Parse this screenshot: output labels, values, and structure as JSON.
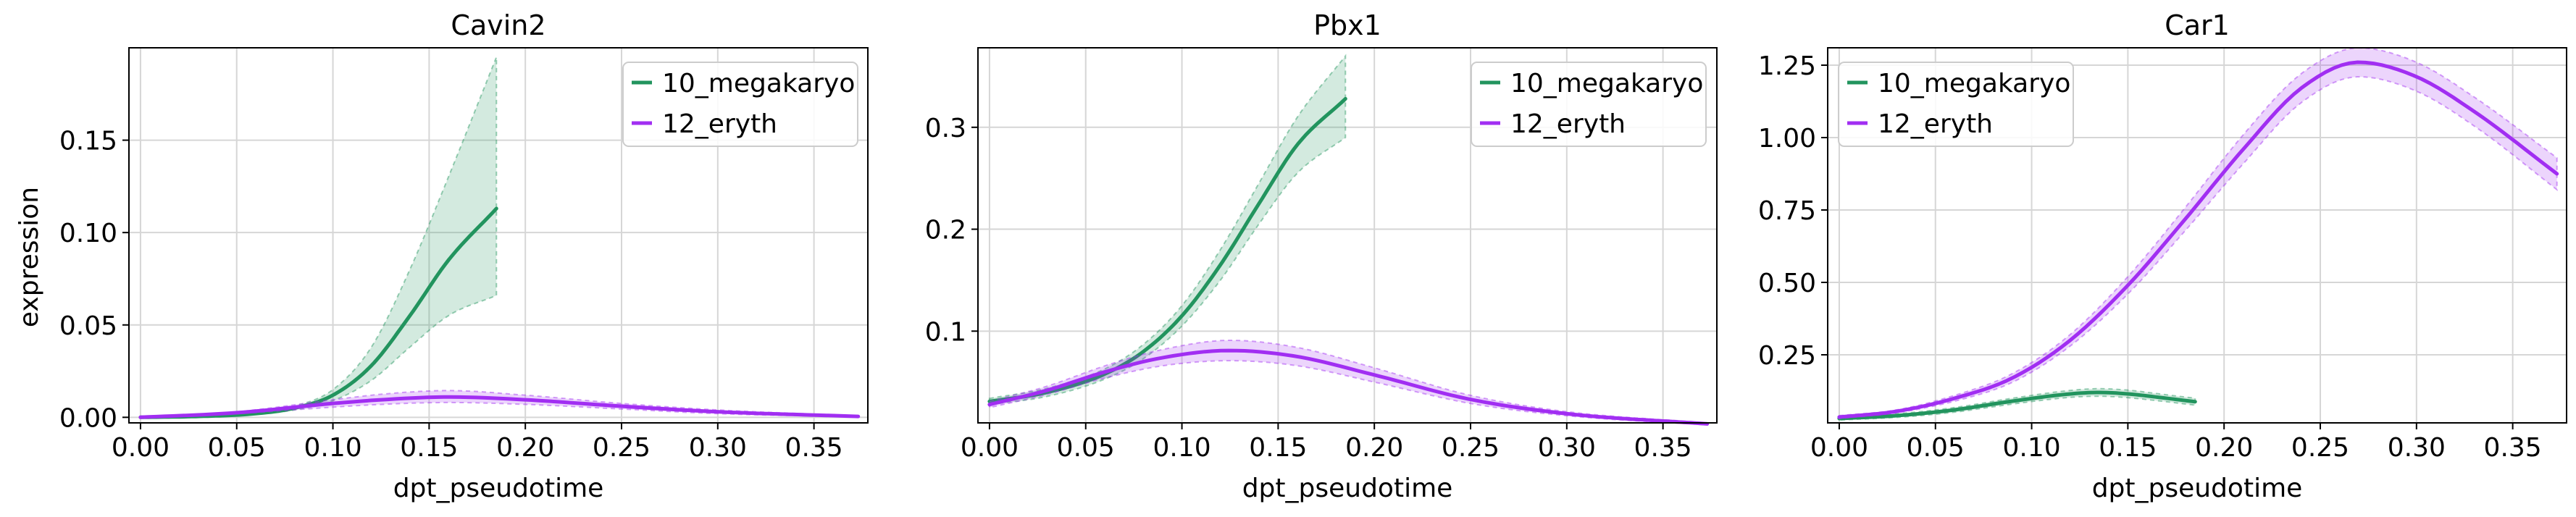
{
  "figure": {
    "xlabel": "dpt_pseudotime",
    "ylabel": "expression"
  },
  "chart_data": [
    {
      "type": "line",
      "title": "Cavin2",
      "xlabel": "dpt_pseudotime",
      "ylabel": "expression",
      "xlim": [
        -0.006,
        0.378
      ],
      "ylim": [
        -0.003,
        0.2
      ],
      "xticks": [
        0.0,
        0.05,
        0.1,
        0.15,
        0.2,
        0.25,
        0.3,
        0.35
      ],
      "xtick_labels": [
        "0.00",
        "0.05",
        "0.10",
        "0.15",
        "0.20",
        "0.25",
        "0.30",
        "0.35"
      ],
      "yticks": [
        0.0,
        0.05,
        0.1,
        0.15
      ],
      "ytick_labels": [
        "0.00",
        "0.05",
        "0.10",
        "0.15"
      ],
      "grid": true,
      "legend_position": "top-right",
      "series": [
        {
          "name": "10_megakaryo",
          "color": "#22945e",
          "x": [
            0.0,
            0.03,
            0.06,
            0.08,
            0.1,
            0.12,
            0.14,
            0.16,
            0.185
          ],
          "y": [
            0.0,
            0.0005,
            0.002,
            0.005,
            0.012,
            0.028,
            0.055,
            0.085,
            0.113
          ],
          "lower": [
            0.0,
            0.0004,
            0.0017,
            0.004,
            0.009,
            0.02,
            0.038,
            0.055,
            0.066
          ],
          "upper": [
            0.0,
            0.0006,
            0.0024,
            0.006,
            0.015,
            0.038,
            0.08,
            0.13,
            0.195
          ]
        },
        {
          "name": "12_eryth",
          "color": "#a12ef2",
          "x": [
            0.0,
            0.05,
            0.1,
            0.125,
            0.16,
            0.2,
            0.25,
            0.3,
            0.373
          ],
          "y": [
            0.0,
            0.0025,
            0.0075,
            0.0095,
            0.011,
            0.0095,
            0.006,
            0.003,
            0.0005
          ],
          "lower": [
            0.0,
            0.002,
            0.0055,
            0.007,
            0.008,
            0.007,
            0.0045,
            0.002,
            0.0003
          ],
          "upper": [
            0.0,
            0.003,
            0.0095,
            0.0125,
            0.0145,
            0.012,
            0.0075,
            0.004,
            0.0008
          ]
        }
      ]
    },
    {
      "type": "line",
      "title": "Pbx1",
      "xlabel": "dpt_pseudotime",
      "ylabel": "",
      "xlim": [
        -0.006,
        0.378
      ],
      "ylim": [
        0.01,
        0.378
      ],
      "xticks": [
        0.0,
        0.05,
        0.1,
        0.15,
        0.2,
        0.25,
        0.3,
        0.35
      ],
      "xtick_labels": [
        "0.00",
        "0.05",
        "0.10",
        "0.15",
        "0.20",
        "0.25",
        "0.30",
        "0.35"
      ],
      "yticks": [
        0.1,
        0.2,
        0.3
      ],
      "ytick_labels": [
        "0.1",
        "0.2",
        "0.3"
      ],
      "grid": true,
      "legend_position": "top-right",
      "series": [
        {
          "name": "10_megakaryo",
          "color": "#22945e",
          "x": [
            0.0,
            0.03,
            0.06,
            0.08,
            0.1,
            0.12,
            0.14,
            0.16,
            0.185
          ],
          "y": [
            0.031,
            0.04,
            0.058,
            0.08,
            0.115,
            0.165,
            0.225,
            0.283,
            0.328
          ],
          "lower": [
            0.028,
            0.036,
            0.053,
            0.073,
            0.105,
            0.15,
            0.205,
            0.255,
            0.29
          ],
          "upper": [
            0.034,
            0.044,
            0.063,
            0.087,
            0.125,
            0.18,
            0.245,
            0.31,
            0.37
          ]
        },
        {
          "name": "12_eryth",
          "color": "#a12ef2",
          "x": [
            0.0,
            0.03,
            0.06,
            0.09,
            0.125,
            0.16,
            0.2,
            0.25,
            0.3,
            0.373
          ],
          "y": [
            0.028,
            0.042,
            0.06,
            0.074,
            0.081,
            0.075,
            0.057,
            0.033,
            0.019,
            0.009
          ],
          "lower": [
            0.025,
            0.038,
            0.054,
            0.066,
            0.071,
            0.066,
            0.05,
            0.029,
            0.017,
            0.008
          ],
          "upper": [
            0.031,
            0.046,
            0.066,
            0.082,
            0.091,
            0.084,
            0.064,
            0.037,
            0.021,
            0.01
          ]
        }
      ]
    },
    {
      "type": "line",
      "title": "Car1",
      "xlabel": "dpt_pseudotime",
      "ylabel": "",
      "xlim": [
        -0.006,
        0.378
      ],
      "ylim": [
        0.015,
        1.31
      ],
      "xticks": [
        0.0,
        0.05,
        0.1,
        0.15,
        0.2,
        0.25,
        0.3,
        0.35
      ],
      "xtick_labels": [
        "0.00",
        "0.05",
        "0.10",
        "0.15",
        "0.20",
        "0.25",
        "0.30",
        "0.35"
      ],
      "yticks": [
        0.25,
        0.5,
        0.75,
        1.0,
        1.25
      ],
      "ytick_labels": [
        "0.25",
        "0.50",
        "0.75",
        "1.00",
        "1.25"
      ],
      "grid": true,
      "legend_position": "top-left",
      "series": [
        {
          "name": "10_megakaryo",
          "color": "#22945e",
          "x": [
            0.0,
            0.03,
            0.06,
            0.09,
            0.12,
            0.135,
            0.15,
            0.17,
            0.185
          ],
          "y": [
            0.03,
            0.04,
            0.06,
            0.09,
            0.115,
            0.12,
            0.115,
            0.1,
            0.088
          ],
          "lower": [
            0.025,
            0.034,
            0.052,
            0.08,
            0.103,
            0.107,
            0.102,
            0.088,
            0.076
          ],
          "upper": [
            0.035,
            0.046,
            0.068,
            0.1,
            0.127,
            0.133,
            0.128,
            0.112,
            0.1
          ]
        },
        {
          "name": "12_eryth",
          "color": "#a12ef2",
          "x": [
            0.0,
            0.03,
            0.06,
            0.09,
            0.12,
            0.15,
            0.18,
            0.21,
            0.24,
            0.27,
            0.3,
            0.33,
            0.373
          ],
          "y": [
            0.035,
            0.055,
            0.1,
            0.17,
            0.3,
            0.49,
            0.72,
            0.96,
            1.17,
            1.26,
            1.21,
            1.09,
            0.875
          ],
          "lower": [
            0.03,
            0.05,
            0.09,
            0.155,
            0.28,
            0.46,
            0.68,
            0.91,
            1.12,
            1.21,
            1.16,
            1.04,
            0.82
          ],
          "upper": [
            0.04,
            0.06,
            0.11,
            0.185,
            0.32,
            0.52,
            0.76,
            1.01,
            1.22,
            1.31,
            1.26,
            1.14,
            0.93
          ]
        }
      ]
    }
  ]
}
